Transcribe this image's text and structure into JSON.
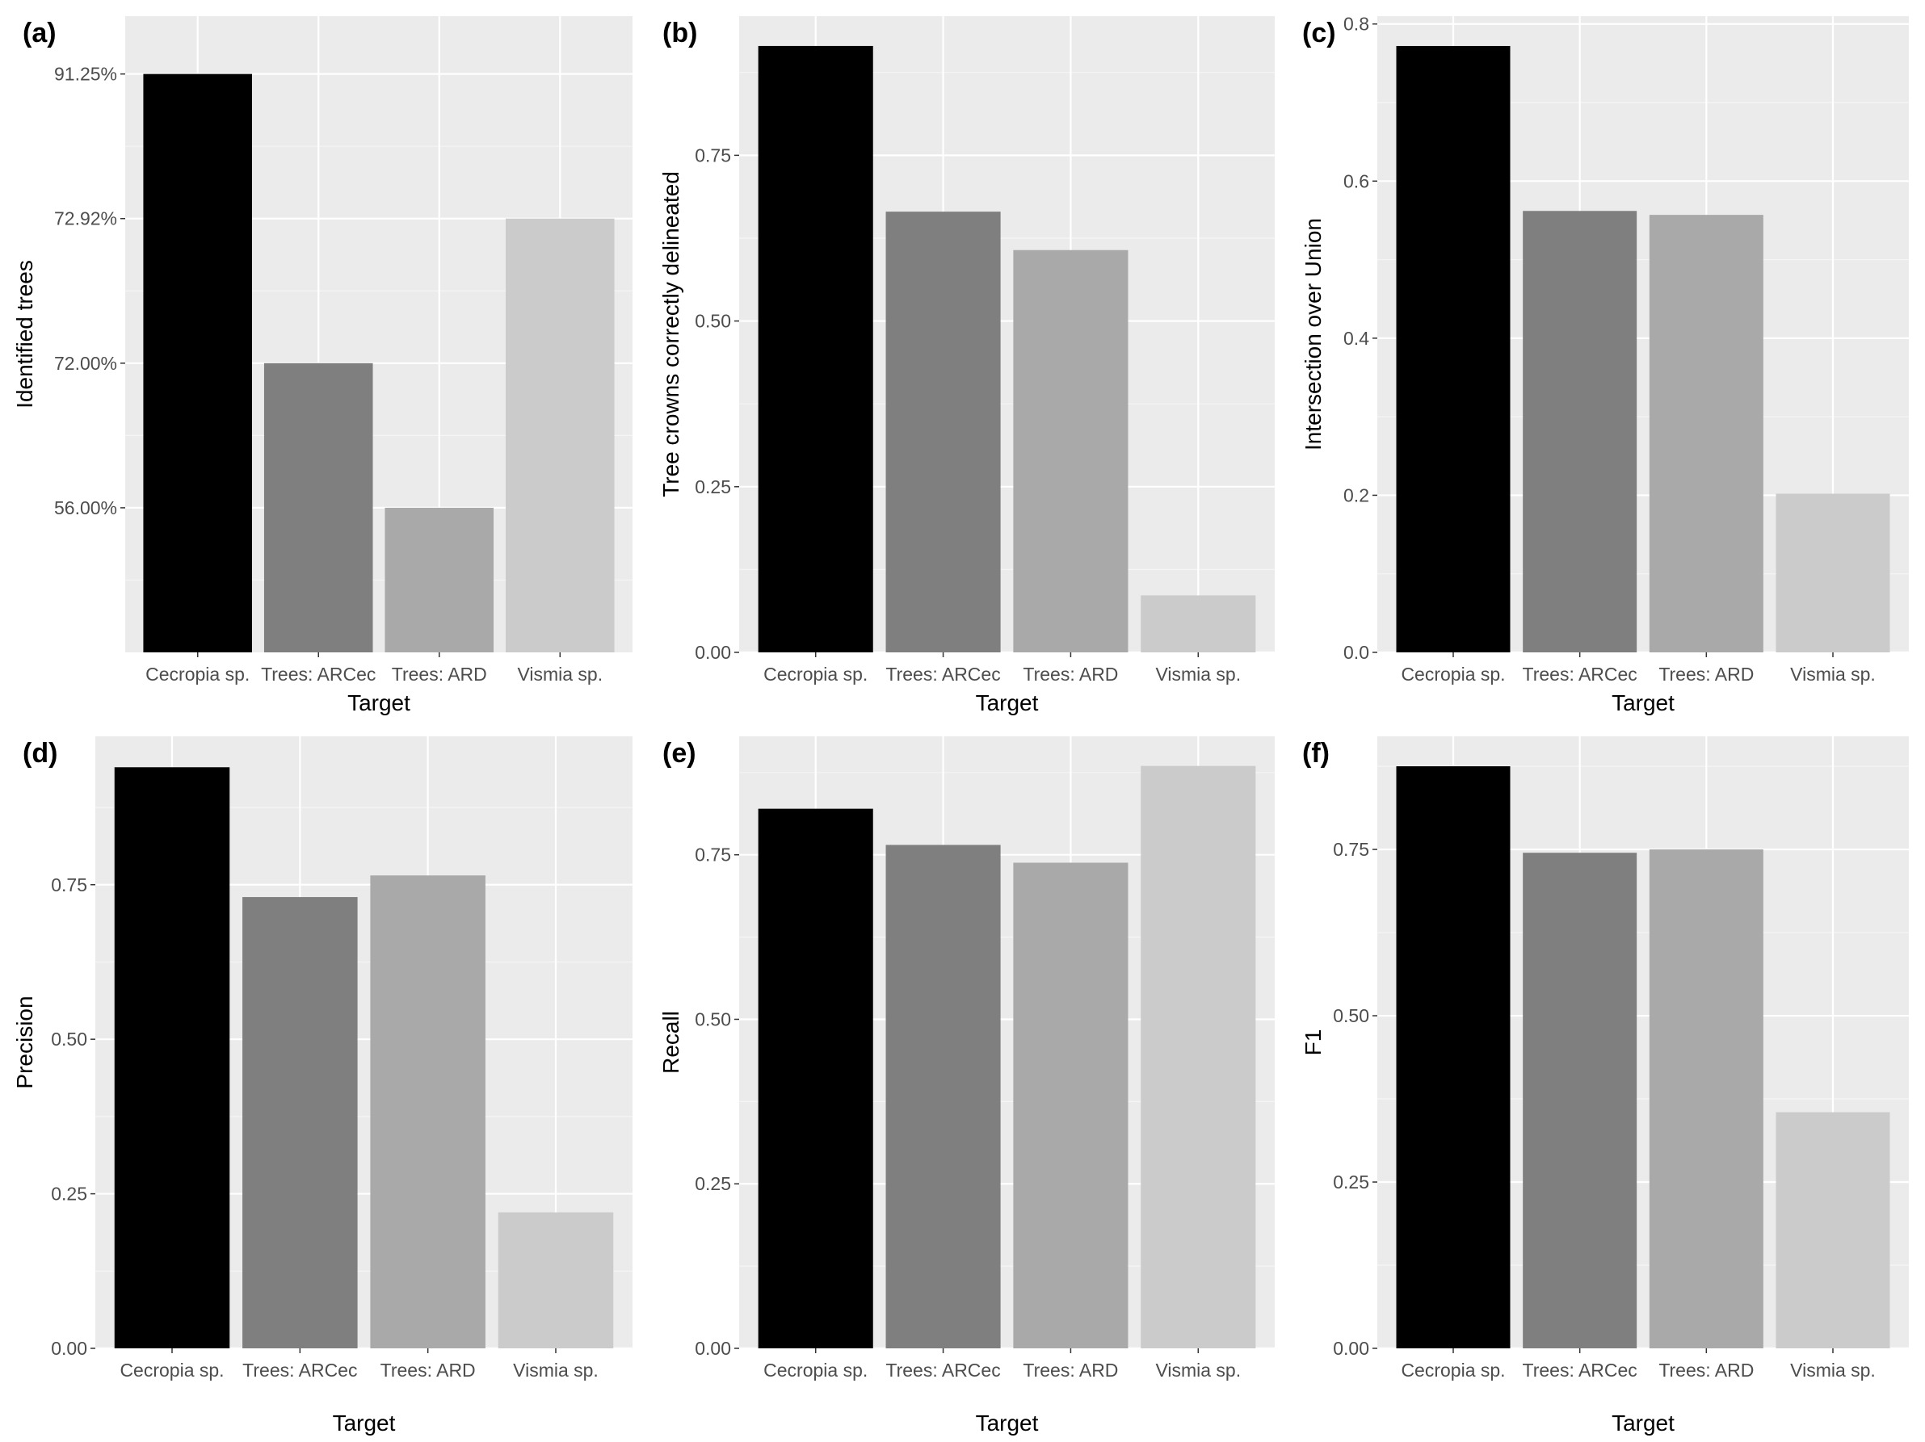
{
  "chart_data": [
    {
      "id": "a",
      "tag": "(a)",
      "type": "bar",
      "title": "",
      "xlabel": "Target",
      "ylabel": "Identified trees",
      "categories": [
        "Cecropia sp.",
        "Trees: ARCec",
        "Trees: ARD",
        "Vismia sp."
      ],
      "values": [
        4,
        2,
        1,
        3
      ],
      "value_labels": [
        "91.25%",
        "72.00%",
        "56.00%",
        "72.92%"
      ],
      "ylim": [
        0,
        4.4
      ],
      "yticks": [
        {
          "value": 1,
          "label": "56.00%"
        },
        {
          "value": 2,
          "label": "72.00%"
        },
        {
          "value": 3,
          "label": "72.92%"
        },
        {
          "value": 4,
          "label": "91.25%"
        }
      ],
      "grid": true
    },
    {
      "id": "b",
      "tag": "(b)",
      "type": "bar",
      "title": "",
      "xlabel": "Target",
      "ylabel": "Tree crowns correctly delineated",
      "categories": [
        "Cecropia sp.",
        "Trees: ARCec",
        "Trees: ARD",
        "Vismia sp."
      ],
      "values": [
        0.915,
        0.665,
        0.607,
        0.086
      ],
      "ylim": [
        0,
        0.96
      ],
      "yticks": [
        {
          "value": 0,
          "label": "0.00"
        },
        {
          "value": 0.25,
          "label": "0.25"
        },
        {
          "value": 0.5,
          "label": "0.50"
        },
        {
          "value": 0.75,
          "label": "0.75"
        }
      ],
      "grid": true
    },
    {
      "id": "c",
      "tag": "(c)",
      "type": "bar",
      "title": "",
      "xlabel": "Target",
      "ylabel": "Intersection over Union",
      "categories": [
        "Cecropia sp.",
        "Trees: ARCec",
        "Trees: ARD",
        "Vismia sp."
      ],
      "values": [
        0.772,
        0.562,
        0.557,
        0.202
      ],
      "ylim": [
        0,
        0.81
      ],
      "yticks": [
        {
          "value": 0,
          "label": "0.0"
        },
        {
          "value": 0.2,
          "label": "0.2"
        },
        {
          "value": 0.4,
          "label": "0.4"
        },
        {
          "value": 0.6,
          "label": "0.6"
        },
        {
          "value": 0.8,
          "label": "0.8"
        }
      ],
      "grid": true
    },
    {
      "id": "d",
      "tag": "(d)",
      "type": "bar",
      "title": "",
      "xlabel": "Target",
      "ylabel": "Precision",
      "categories": [
        "Cecropia sp.",
        "Trees: ARCec",
        "Trees: ARD",
        "Vismia sp."
      ],
      "values": [
        0.94,
        0.73,
        0.765,
        0.22
      ],
      "ylim": [
        0,
        0.99
      ],
      "yticks": [
        {
          "value": 0,
          "label": "0.00"
        },
        {
          "value": 0.25,
          "label": "0.25"
        },
        {
          "value": 0.5,
          "label": "0.50"
        },
        {
          "value": 0.75,
          "label": "0.75"
        }
      ],
      "grid": true
    },
    {
      "id": "e",
      "tag": "(e)",
      "type": "bar",
      "title": "",
      "xlabel": "Target",
      "ylabel": "Recall",
      "categories": [
        "Cecropia sp.",
        "Trees: ARCec",
        "Trees: ARD",
        "Vismia sp."
      ],
      "values": [
        0.82,
        0.765,
        0.738,
        0.885
      ],
      "ylim": [
        0,
        0.93
      ],
      "yticks": [
        {
          "value": 0,
          "label": "0.00"
        },
        {
          "value": 0.25,
          "label": "0.25"
        },
        {
          "value": 0.5,
          "label": "0.50"
        },
        {
          "value": 0.75,
          "label": "0.75"
        }
      ],
      "grid": true
    },
    {
      "id": "f",
      "tag": "(f)",
      "type": "bar",
      "title": "",
      "xlabel": "Target",
      "ylabel": "F1",
      "categories": [
        "Cecropia sp.",
        "Trees: ARCec",
        "Trees: ARD",
        "Vismia sp."
      ],
      "values": [
        0.875,
        0.745,
        0.75,
        0.355
      ],
      "ylim": [
        0,
        0.92
      ],
      "yticks": [
        {
          "value": 0,
          "label": "0.00"
        },
        {
          "value": 0.25,
          "label": "0.25"
        },
        {
          "value": 0.5,
          "label": "0.50"
        },
        {
          "value": 0.75,
          "label": "0.75"
        }
      ],
      "grid": true
    }
  ],
  "colors": {
    "panel_background": "#ebebeb",
    "grid_major": "#ffffff",
    "grid_minor": "#f5f5f5",
    "bars": [
      "#000000",
      "#7f7f7f",
      "#a9a9a9",
      "#cbcbcb"
    ],
    "tick_text": "#4d4d4d",
    "title_text": "#000000"
  }
}
